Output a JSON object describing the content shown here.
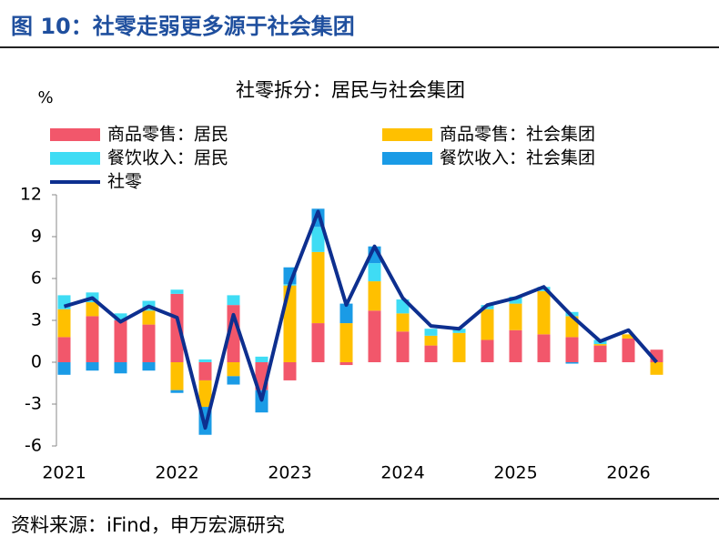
{
  "header": {
    "title": "图 10：社零走弱更多源于社会集团"
  },
  "chart_data": {
    "type": "bar",
    "title": "社零拆分：居民与社会集团",
    "y_unit": "%",
    "categories": [
      "2021",
      null,
      null,
      null,
      "2022",
      null,
      null,
      null,
      "2023",
      null,
      null,
      null,
      "2024",
      null,
      null,
      null,
      "2025",
      null,
      null,
      null,
      "2026",
      null
    ],
    "stacked": true,
    "series": [
      {
        "name": "商品零售：居民",
        "type": "bar",
        "color": "#f2576b",
        "values": [
          1.8,
          3.3,
          3.0,
          2.7,
          4.9,
          -1.3,
          4.1,
          -2.0,
          -1.3,
          2.8,
          -0.2,
          3.7,
          2.2,
          1.2,
          0,
          1.6,
          2.3,
          2.0,
          1.8,
          1.2,
          1.7,
          0.9
        ]
      },
      {
        "name": "商品零售：社会集团",
        "type": "bar",
        "color": "#ffc000",
        "values": [
          2.0,
          1.0,
          0,
          1.0,
          -2.0,
          -1.9,
          -1.0,
          0,
          5.5,
          5.1,
          2.8,
          2.1,
          1.3,
          0.7,
          2.1,
          2.2,
          1.9,
          3.1,
          1.5,
          0.1,
          0.3,
          -0.9
        ]
      },
      {
        "name": "餐饮收入：居民",
        "type": "bar",
        "color": "#3fdcf4",
        "values": [
          1.0,
          0.7,
          0.5,
          0.7,
          0.3,
          0.2,
          0.7,
          0.4,
          0.1,
          1.8,
          0,
          1.3,
          1.0,
          0.5,
          0.3,
          0.3,
          0.5,
          0.3,
          0.3,
          0.3,
          0,
          0
        ]
      },
      {
        "name": "餐饮收入：社会集团",
        "type": "bar",
        "color": "#1a9be6",
        "values": [
          -0.9,
          -0.6,
          -0.8,
          -0.6,
          -0.2,
          -2.0,
          -0.6,
          -1.6,
          1.2,
          1.3,
          1.4,
          1.2,
          0,
          0,
          0,
          0,
          0,
          0,
          -0.1,
          0,
          0,
          0
        ]
      },
      {
        "name": "社零",
        "type": "line",
        "color": "#0d2f8f",
        "values": [
          4.0,
          4.6,
          2.9,
          4.0,
          3.2,
          -4.7,
          3.4,
          -2.7,
          5.6,
          10.8,
          4.1,
          8.3,
          4.6,
          2.6,
          2.4,
          4.1,
          4.6,
          5.4,
          3.3,
          1.5,
          2.3,
          0
        ]
      }
    ],
    "ylim": [
      -6,
      12
    ],
    "yticks": [
      -6,
      -3,
      0,
      3,
      6,
      9,
      12
    ],
    "grid": false
  },
  "footer": {
    "source": "资料来源：iFind，申万宏源研究"
  }
}
